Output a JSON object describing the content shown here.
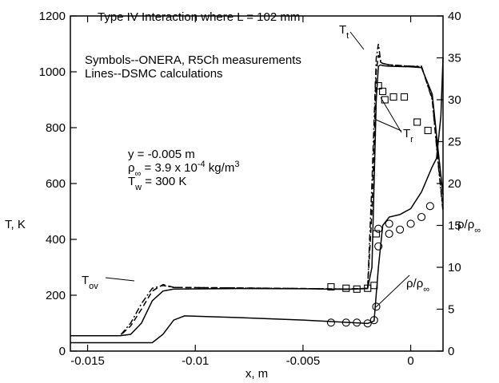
{
  "chart_data": {
    "type": "line",
    "x_label": "x, m",
    "y_label": "T, K",
    "y2_label": {
      "parts": [
        {
          "t": "ρ/ρ"
        },
        {
          "t": "∞",
          "pos": "sub"
        }
      ]
    },
    "annotations": [
      {
        "parts": [
          {
            "t": "Type IV Interaction where L = 102 mm"
          }
        ]
      },
      {
        "parts": [
          {
            "t": "Symbols--ONERA, R5Ch measurements"
          }
        ]
      },
      {
        "parts": [
          {
            "t": "Lines--DSMC calculations"
          }
        ]
      },
      {
        "parts": [
          {
            "t": "y = -0.005 m"
          }
        ]
      },
      {
        "parts": [
          {
            "t": "ρ"
          },
          {
            "t": "∞",
            "pos": "sub"
          },
          {
            "t": " = 3.9 x 10"
          },
          {
            "t": "-4",
            "pos": "sup"
          },
          {
            "t": " kg/m"
          },
          {
            "t": "3",
            "pos": "sup"
          }
        ]
      },
      {
        "parts": [
          {
            "t": "T"
          },
          {
            "t": "w",
            "pos": "sub"
          },
          {
            "t": " = 300 K"
          }
        ]
      }
    ],
    "xlim": [
      -0.0158,
      0.0015
    ],
    "xticks": [
      -0.015,
      -0.01,
      -0.005,
      0
    ],
    "ylim": [
      0,
      1200
    ],
    "yticks": [
      0,
      200,
      400,
      600,
      800,
      1000,
      1200
    ],
    "y2lim": [
      0,
      40
    ],
    "y2ticks": [
      0,
      5,
      10,
      15,
      20,
      25,
      30,
      35,
      40
    ],
    "series": [
      {
        "label": {
          "parts": [
            {
              "t": "T"
            },
            {
              "t": "t",
              "pos": "sub"
            }
          ]
        },
        "color": "#000000",
        "dash": "dashdot",
        "x": [
          -0.0158,
          -0.0135,
          -0.013,
          -0.0125,
          -0.012,
          -0.0115,
          -0.011,
          -0.008,
          -0.005,
          -0.003,
          -0.002,
          -0.0018,
          -0.0016,
          -0.0015,
          -0.0014,
          -0.0013,
          -0.001,
          0,
          0.0005,
          0.001,
          0.0013,
          0.0015
        ],
        "values": [
          55,
          55,
          100,
          170,
          225,
          235,
          228,
          226,
          224,
          222,
          225,
          600,
          1050,
          1100,
          1040,
          1030,
          1025,
          1020,
          1020,
          900,
          650,
          500
        ]
      },
      {
        "label": {
          "parts": [
            {
              "t": "T"
            },
            {
              "t": "r",
              "pos": "sub"
            }
          ]
        },
        "color": "#000000",
        "dash": "dashed",
        "x": [
          -0.0158,
          -0.0135,
          -0.013,
          -0.0125,
          -0.012,
          -0.0115,
          -0.011,
          -0.008,
          -0.005,
          -0.003,
          -0.002,
          -0.0018,
          -0.0016,
          -0.0015,
          -0.0014,
          -0.0013,
          -0.001,
          0,
          0.0005,
          0.001,
          0.0013,
          0.0015
        ],
        "values": [
          55,
          55,
          90,
          150,
          215,
          238,
          228,
          226,
          224,
          222,
          225,
          500,
          1000,
          1060,
          1035,
          1030,
          1025,
          1020,
          1018,
          905,
          660,
          510
        ]
      },
      {
        "label": {
          "parts": [
            {
              "t": "T"
            },
            {
              "t": "ov",
              "pos": "sub"
            }
          ]
        },
        "color": "#000000",
        "dash": "solid",
        "x": [
          -0.0158,
          -0.0135,
          -0.013,
          -0.0125,
          -0.012,
          -0.0115,
          -0.011,
          -0.008,
          -0.005,
          -0.003,
          -0.002,
          -0.0018,
          -0.0016,
          -0.0015,
          -0.0014,
          -0.0013,
          -0.001,
          0,
          0.0005,
          0.001,
          0.0013,
          0.0015
        ],
        "values": [
          55,
          55,
          60,
          100,
          180,
          215,
          222,
          224,
          223,
          221,
          224,
          300,
          900,
          1020,
          1025,
          1022,
          1020,
          1018,
          1015,
          920,
          700,
          560
        ]
      },
      {
        "label": {
          "parts": [
            {
              "t": "ρ/ρ"
            },
            {
              "t": "∞",
              "pos": "sub"
            }
          ]
        },
        "color": "#000000",
        "dash": "solid",
        "axis": "y2",
        "x": [
          -0.0158,
          -0.012,
          -0.0115,
          -0.011,
          -0.0105,
          -0.008,
          -0.005,
          -0.002,
          -0.0017,
          -0.0015,
          -0.0013,
          -0.001,
          -0.0005,
          0,
          0.0005,
          0.001,
          0.0012,
          0.0014,
          0.0015
        ],
        "values": [
          1,
          1,
          2,
          3.7,
          4.2,
          4.0,
          3.7,
          3.3,
          3.6,
          10,
          15,
          16,
          16.3,
          17,
          19,
          22,
          23,
          28,
          35
        ]
      },
      {
        "color": "#000000",
        "marker": "square",
        "x": [
          -0.0037,
          -0.003,
          -0.0025,
          -0.002,
          -0.0017,
          -0.0016,
          -0.0015,
          -0.0013,
          -0.0012,
          -0.0008,
          -0.0003,
          0.0003,
          0.0008
        ],
        "values": [
          230,
          225,
          222,
          225,
          235,
          420,
          950,
          930,
          900,
          910,
          910,
          820,
          790
        ]
      },
      {
        "color": "#000000",
        "marker": "circle",
        "axis": "y2",
        "x": [
          -0.0037,
          -0.003,
          -0.0025,
          -0.002,
          -0.0017,
          -0.0016,
          -0.0015,
          -0.0015,
          -0.001,
          -0.001,
          -0.0005,
          0,
          0.0005,
          0.0009
        ],
        "values": [
          3.4,
          3.4,
          3.4,
          3.3,
          3.7,
          5.3,
          12.5,
          14.6,
          14,
          15.2,
          14.5,
          15.2,
          16,
          17.3
        ]
      }
    ]
  }
}
